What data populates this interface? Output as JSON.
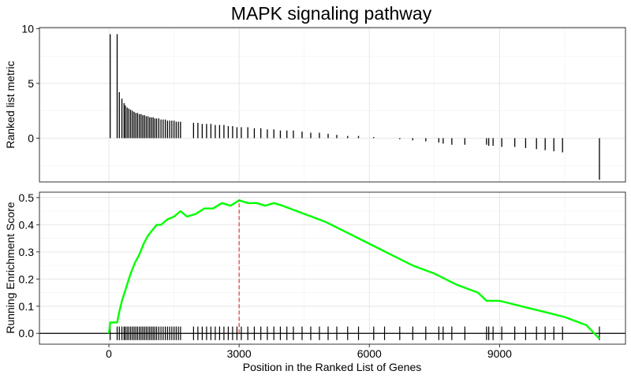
{
  "chart_data": {
    "title": "MAPK signaling pathway",
    "xlabel": "Position in the Ranked List of Genes",
    "xlim": [
      -1600,
      11900
    ],
    "xticks": [
      0,
      3000,
      6000,
      9000
    ],
    "xtick_labels": [
      "0",
      "3000",
      "6000",
      "9000"
    ],
    "grid": true,
    "panels": [
      {
        "type": "bar",
        "ylabel": "Ranked list metric",
        "ylim": [
          -4,
          10.1
        ],
        "yticks": [
          0,
          5,
          10
        ],
        "ytick_labels": [
          "0",
          "5",
          "10"
        ],
        "color": "#000000",
        "x": [
          30,
          190,
          240,
          300,
          350,
          380,
          420,
          460,
          500,
          540,
          580,
          620,
          660,
          700,
          740,
          780,
          820,
          860,
          900,
          940,
          980,
          1020,
          1060,
          1100,
          1150,
          1200,
          1250,
          1300,
          1350,
          1400,
          1450,
          1500,
          1550,
          1600,
          1650,
          1950,
          2050,
          2150,
          2250,
          2350,
          2450,
          2550,
          2650,
          2750,
          2850,
          2950,
          3050,
          3200,
          3350,
          3500,
          3650,
          3800,
          3950,
          4100,
          4250,
          4450,
          4650,
          4850,
          5050,
          5250,
          5500,
          5750,
          6100,
          6350,
          6700,
          7000,
          7300,
          7600,
          7700,
          7900,
          8200,
          8700,
          8750,
          8850,
          9050,
          9350,
          9600,
          9850,
          10050,
          10250,
          10450,
          11300
        ],
        "values": [
          9.5,
          9.5,
          4.2,
          3.6,
          3.2,
          3.0,
          2.8,
          2.7,
          2.6,
          2.5,
          2.4,
          2.3,
          2.3,
          2.2,
          2.2,
          2.1,
          2.1,
          2.0,
          2.0,
          1.9,
          1.9,
          1.9,
          1.8,
          1.8,
          1.8,
          1.7,
          1.7,
          1.7,
          1.6,
          1.6,
          1.6,
          1.6,
          1.5,
          1.5,
          1.5,
          1.4,
          1.4,
          1.3,
          1.3,
          1.3,
          1.2,
          1.2,
          1.2,
          1.1,
          1.1,
          1.0,
          1.0,
          1.0,
          0.9,
          0.9,
          0.8,
          0.8,
          0.7,
          0.7,
          0.7,
          0.6,
          0.5,
          0.5,
          0.4,
          0.3,
          0.2,
          0.2,
          0.1,
          0.0,
          -0.1,
          -0.2,
          -0.3,
          -0.4,
          -0.5,
          -0.6,
          -0.6,
          -0.6,
          -0.7,
          -0.7,
          -0.8,
          -0.8,
          -0.9,
          -1.0,
          -1.1,
          -1.2,
          -1.3,
          -3.8
        ]
      },
      {
        "type": "line",
        "ylabel": "Running Enrichment Score",
        "ylim": [
          -0.04,
          0.52
        ],
        "yticks": [
          0.0,
          0.1,
          0.2,
          0.3,
          0.4,
          0.5
        ],
        "ytick_labels": [
          "0.0",
          "0.1",
          "0.2",
          "0.3",
          "0.4",
          "0.5"
        ],
        "line_color": "#00ff00",
        "x": [
          0,
          30,
          190,
          240,
          300,
          400,
          500,
          600,
          700,
          800,
          900,
          1000,
          1100,
          1200,
          1350,
          1500,
          1650,
          1800,
          2000,
          2200,
          2400,
          2600,
          2800,
          3000,
          3200,
          3400,
          3600,
          3800,
          4000,
          4500,
          5000,
          5500,
          6000,
          6500,
          7000,
          7500,
          8000,
          8500,
          8700,
          9000,
          9500,
          10000,
          10500,
          11000,
          11300
        ],
        "values": [
          0.0,
          0.04,
          0.04,
          0.08,
          0.12,
          0.17,
          0.22,
          0.26,
          0.29,
          0.33,
          0.36,
          0.38,
          0.4,
          0.4,
          0.42,
          0.43,
          0.45,
          0.43,
          0.44,
          0.46,
          0.46,
          0.48,
          0.47,
          0.49,
          0.48,
          0.48,
          0.47,
          0.48,
          0.47,
          0.44,
          0.41,
          0.37,
          0.33,
          0.29,
          0.25,
          0.22,
          0.18,
          0.15,
          0.12,
          0.12,
          0.1,
          0.08,
          0.06,
          0.03,
          -0.02
        ],
        "peak_x": 3000,
        "peak_line_color": "#e0392b",
        "hit_positions": [
          30,
          190,
          240,
          300,
          350,
          380,
          420,
          460,
          500,
          540,
          580,
          620,
          660,
          700,
          740,
          780,
          820,
          860,
          900,
          940,
          980,
          1020,
          1060,
          1100,
          1150,
          1200,
          1250,
          1300,
          1350,
          1400,
          1450,
          1500,
          1550,
          1600,
          1650,
          1950,
          2050,
          2150,
          2250,
          2350,
          2450,
          2550,
          2650,
          2750,
          2850,
          2950,
          3050,
          3200,
          3350,
          3500,
          3650,
          3800,
          3950,
          4100,
          4250,
          4450,
          4650,
          4850,
          5050,
          5250,
          5500,
          5750,
          6100,
          6350,
          6700,
          7000,
          7300,
          7600,
          7700,
          7900,
          8200,
          8700,
          8750,
          8850,
          9050,
          9350,
          9600,
          9850,
          10050,
          10250,
          10450,
          11300
        ]
      }
    ]
  }
}
